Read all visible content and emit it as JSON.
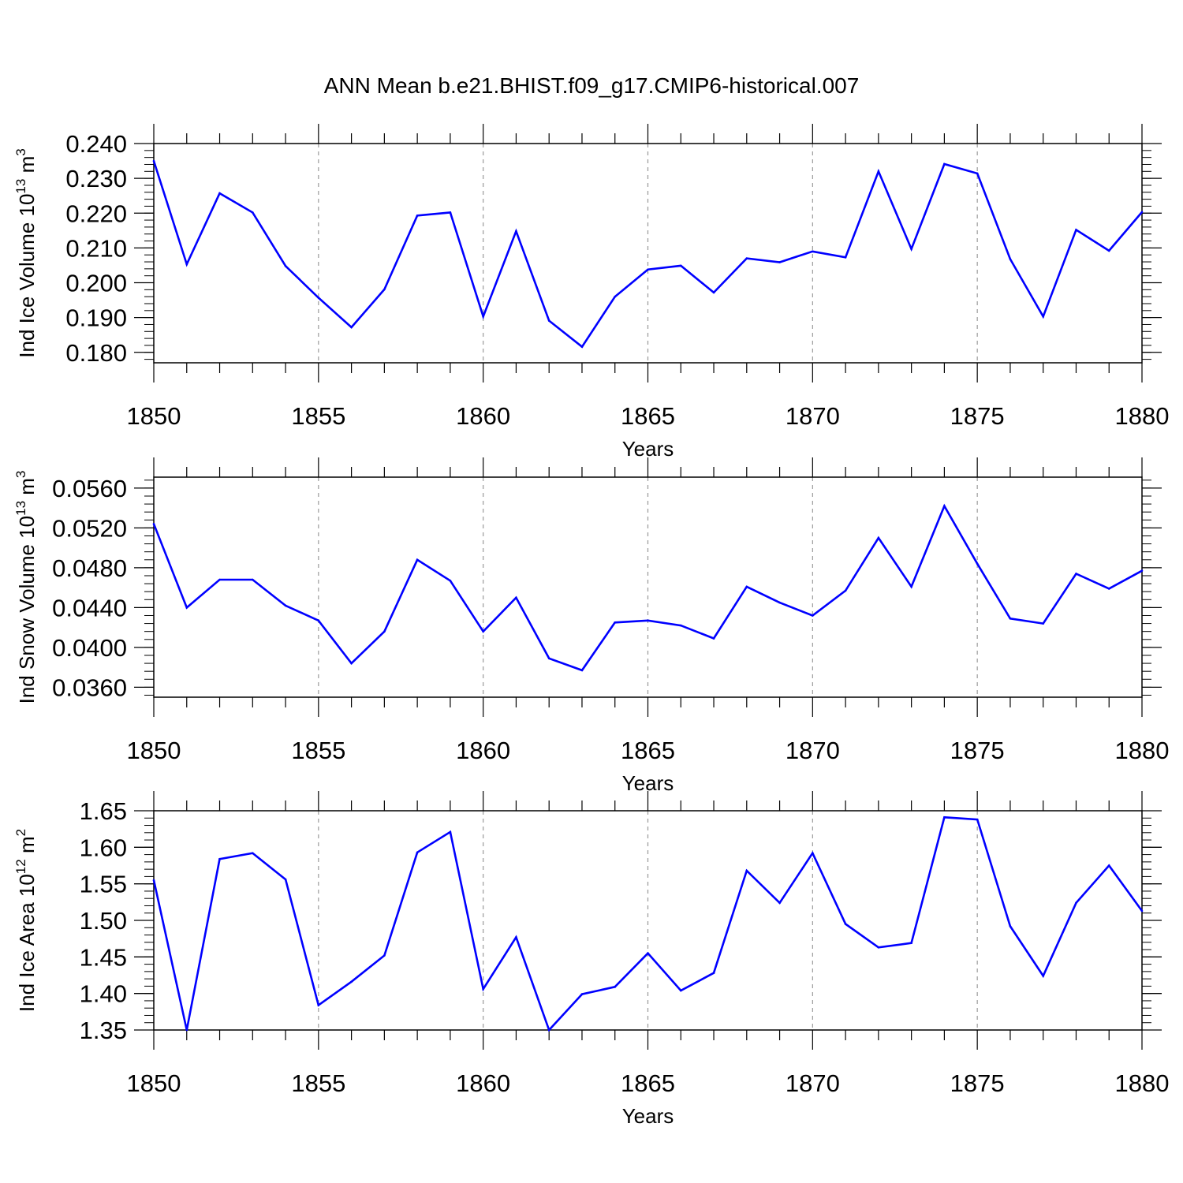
{
  "title": "ANN Mean b.e21.BHIST.f09_g17.CMIP6-historical.007",
  "line_color": "#0000ff",
  "chart_data": [
    {
      "type": "line",
      "ylabel": "Ind Ice Volume 10",
      "ylabel_exp": "13",
      "ylabel_unit": "m",
      "ylabel_unit_exp": "3",
      "xlabel": "Years",
      "xlim": [
        1850,
        1880
      ],
      "ylim": [
        0.177,
        0.24
      ],
      "yticks": [
        0.18,
        0.19,
        0.2,
        0.21,
        0.22,
        0.23,
        0.24
      ],
      "ytick_labels": [
        "0.180",
        "0.190",
        "0.200",
        "0.210",
        "0.220",
        "0.230",
        "0.240"
      ],
      "xticks": [
        1850,
        1855,
        1860,
        1865,
        1870,
        1875,
        1880
      ],
      "xtick_labels": [
        "1850",
        "1855",
        "1860",
        "1865",
        "1870",
        "1875",
        "1880"
      ],
      "x": [
        1850,
        1851,
        1852,
        1853,
        1854,
        1855,
        1856,
        1857,
        1858,
        1859,
        1860,
        1861,
        1862,
        1863,
        1864,
        1865,
        1866,
        1867,
        1868,
        1869,
        1870,
        1871,
        1872,
        1873,
        1874,
        1875,
        1876,
        1877,
        1878,
        1879,
        1880
      ],
      "values": [
        0.235,
        0.2053,
        0.2257,
        0.2202,
        0.2048,
        0.1957,
        0.1872,
        0.1981,
        0.2193,
        0.2202,
        0.1903,
        0.2148,
        0.1891,
        0.1816,
        0.196,
        0.2038,
        0.2049,
        0.1972,
        0.207,
        0.2059,
        0.209,
        0.2073,
        0.232,
        0.2097,
        0.2341,
        0.2314,
        0.2068,
        0.1903,
        0.2152,
        0.2092,
        0.2203
      ]
    },
    {
      "type": "line",
      "ylabel": "Ind Snow Volume 10",
      "ylabel_exp": "13",
      "ylabel_unit": "m",
      "ylabel_unit_exp": "3",
      "xlabel": "Years",
      "xlim": [
        1850,
        1880
      ],
      "ylim": [
        0.035,
        0.0571
      ],
      "yticks": [
        0.036,
        0.04,
        0.044,
        0.048,
        0.052,
        0.056
      ],
      "ytick_labels": [
        "0.0360",
        "0.0400",
        "0.0440",
        "0.0480",
        "0.0520",
        "0.0560"
      ],
      "xticks": [
        1850,
        1855,
        1860,
        1865,
        1870,
        1875,
        1880
      ],
      "xtick_labels": [
        "1850",
        "1855",
        "1860",
        "1865",
        "1870",
        "1875",
        "1880"
      ],
      "x": [
        1850,
        1851,
        1852,
        1853,
        1854,
        1855,
        1856,
        1857,
        1858,
        1859,
        1860,
        1861,
        1862,
        1863,
        1864,
        1865,
        1866,
        1867,
        1868,
        1869,
        1870,
        1871,
        1872,
        1873,
        1874,
        1875,
        1876,
        1877,
        1878,
        1879,
        1880
      ],
      "values": [
        0.0524,
        0.044,
        0.0468,
        0.0468,
        0.0442,
        0.0427,
        0.0384,
        0.0416,
        0.0488,
        0.0467,
        0.0416,
        0.045,
        0.0389,
        0.0377,
        0.0425,
        0.0427,
        0.0422,
        0.0409,
        0.0461,
        0.0445,
        0.0432,
        0.0457,
        0.051,
        0.0461,
        0.0542,
        0.0484,
        0.0429,
        0.0424,
        0.0474,
        0.0459,
        0.0477
      ]
    },
    {
      "type": "line",
      "ylabel": "Ind Ice Area 10",
      "ylabel_exp": "12",
      "ylabel_unit": "m",
      "ylabel_unit_exp": "2",
      "xlabel": "Years",
      "xlim": [
        1850,
        1880
      ],
      "ylim": [
        1.35,
        1.65
      ],
      "yticks": [
        1.35,
        1.4,
        1.45,
        1.5,
        1.55,
        1.6,
        1.65
      ],
      "ytick_labels": [
        "1.35",
        "1.40",
        "1.45",
        "1.50",
        "1.55",
        "1.60",
        "1.65"
      ],
      "xticks": [
        1850,
        1855,
        1860,
        1865,
        1870,
        1875,
        1880
      ],
      "xtick_labels": [
        "1850",
        "1855",
        "1860",
        "1865",
        "1870",
        "1875",
        "1880"
      ],
      "x": [
        1850,
        1851,
        1852,
        1853,
        1854,
        1855,
        1856,
        1857,
        1858,
        1859,
        1860,
        1861,
        1862,
        1863,
        1864,
        1865,
        1866,
        1867,
        1868,
        1869,
        1870,
        1871,
        1872,
        1873,
        1874,
        1875,
        1876,
        1877,
        1878,
        1879,
        1880
      ],
      "values": [
        1.555,
        1.35,
        1.584,
        1.592,
        1.556,
        1.384,
        1.416,
        1.452,
        1.593,
        1.621,
        1.406,
        1.477,
        1.35,
        1.399,
        1.409,
        1.455,
        1.404,
        1.428,
        1.568,
        1.524,
        1.592,
        1.495,
        1.463,
        1.469,
        1.641,
        1.638,
        1.492,
        1.424,
        1.524,
        1.575,
        1.513
      ]
    }
  ]
}
